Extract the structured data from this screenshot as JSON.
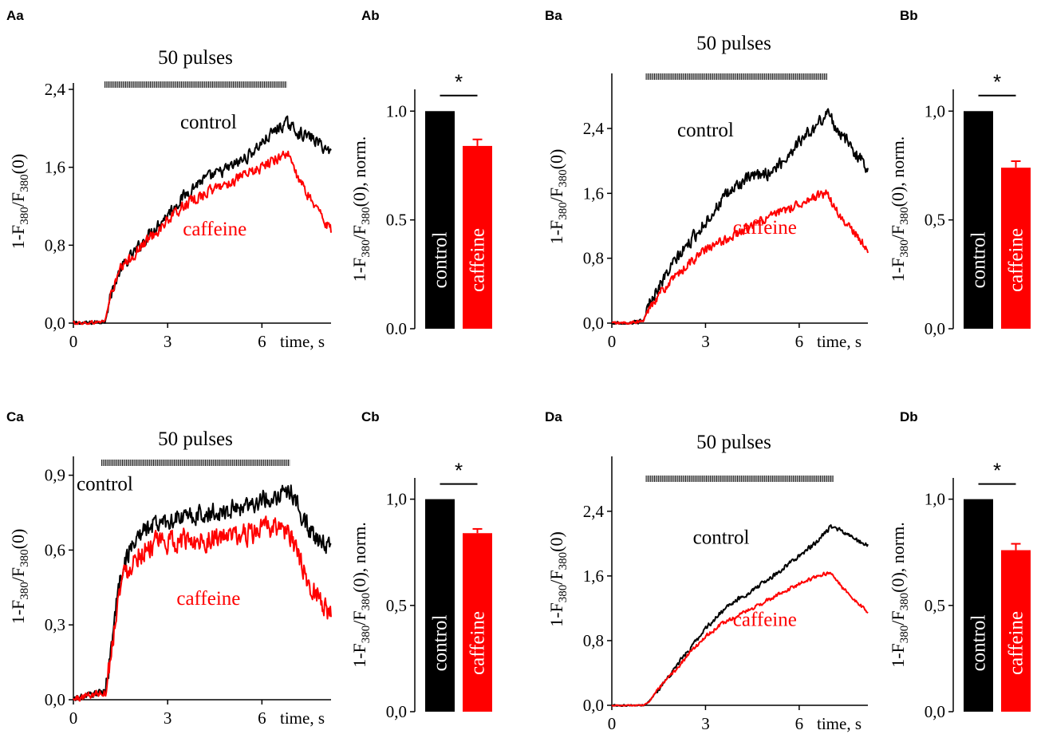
{
  "colors": {
    "control": "#000000",
    "caffeine": "#ff0000"
  },
  "labels": {
    "pulses": "50 pulses",
    "time_unit": "time, s",
    "control": "control",
    "caffeine": "caffeine",
    "significance": "*",
    "y_trace_parts": [
      "1-F",
      "380",
      "/F",
      "380",
      "(0)"
    ],
    "y_bar_parts": [
      "1-F",
      "380",
      "/F",
      "380",
      "(0), norm."
    ]
  },
  "chart_data": [
    {
      "id": "Aa",
      "label": "Aa",
      "type": "line",
      "title": "50 pulses",
      "xlabel": "time, s",
      "ylabel": "1-F380/F380(0)",
      "xlim": [
        0,
        8.2
      ],
      "ylim": [
        0,
        2.4
      ],
      "x_ticks": [
        0,
        3,
        6
      ],
      "x_tick_labels": [
        "0",
        "3",
        "6"
      ],
      "y_ticks": [
        0,
        0.8,
        1.6,
        2.4
      ],
      "y_tick_labels": [
        "0,0",
        "0,8",
        "1,6",
        "2,4"
      ],
      "stimulus": {
        "start": 1.0,
        "end": 6.8
      },
      "series": [
        {
          "name": "control",
          "color": "#000000",
          "noise": 0.055,
          "x": [
            0,
            0.5,
            1.0,
            1.2,
            1.5,
            2.0,
            2.5,
            3.0,
            3.5,
            4.0,
            4.5,
            5.0,
            5.5,
            6.0,
            6.5,
            6.8,
            7.2,
            7.6,
            8.0,
            8.2
          ],
          "y": [
            0,
            0,
            0.02,
            0.3,
            0.55,
            0.75,
            0.95,
            1.12,
            1.3,
            1.45,
            1.52,
            1.6,
            1.7,
            1.85,
            2.0,
            2.05,
            1.95,
            1.9,
            1.8,
            1.75
          ]
        },
        {
          "name": "caffeine",
          "color": "#ff0000",
          "noise": 0.05,
          "x": [
            0,
            0.5,
            1.0,
            1.2,
            1.5,
            2.0,
            2.5,
            3.0,
            3.5,
            4.0,
            4.5,
            5.0,
            5.5,
            6.0,
            6.5,
            6.8,
            7.2,
            7.6,
            8.0,
            8.2
          ],
          "y": [
            0,
            0,
            0.02,
            0.3,
            0.55,
            0.73,
            0.9,
            1.05,
            1.2,
            1.3,
            1.38,
            1.45,
            1.52,
            1.6,
            1.7,
            1.75,
            1.45,
            1.25,
            1.05,
            0.95
          ]
        }
      ],
      "annotations": [
        {
          "text": "control",
          "series": "control",
          "x": 4.3,
          "y": 2.0
        },
        {
          "text": "caffeine",
          "series": "caffeine",
          "x": 4.5,
          "y": 0.9
        }
      ]
    },
    {
      "id": "Ab",
      "label": "Ab",
      "type": "bar",
      "ylabel": "1-F380/F380(0), norm.",
      "ylim": [
        0,
        1.1
      ],
      "y_ticks": [
        0,
        0.5,
        1.0
      ],
      "y_tick_labels": [
        "0.0",
        "0.5",
        "1.0"
      ],
      "categories": [
        "control",
        "caffeine"
      ],
      "values": [
        1.0,
        0.84
      ],
      "errors": [
        0,
        0.03
      ],
      "colors": [
        "#000000",
        "#ff0000"
      ],
      "significance": "*"
    },
    {
      "id": "Ba",
      "label": "Ba",
      "type": "line",
      "title": "50 pulses",
      "xlabel": "time, s",
      "ylabel": "1-F380/F380(0)",
      "xlim": [
        0,
        8.2
      ],
      "ylim": [
        0,
        3.0
      ],
      "x_ticks": [
        0,
        3,
        6
      ],
      "x_tick_labels": [
        "0",
        "3",
        "6"
      ],
      "y_ticks": [
        0,
        0.8,
        1.6,
        2.4
      ],
      "y_tick_labels": [
        "0,0",
        "0,8",
        "1,6",
        "2,4"
      ],
      "stimulus": {
        "start": 1.1,
        "end": 6.9
      },
      "series": [
        {
          "name": "control",
          "color": "#000000",
          "noise": 0.07,
          "x": [
            0,
            0.5,
            1.0,
            1.2,
            1.5,
            2.0,
            2.5,
            3.0,
            3.5,
            4.0,
            4.5,
            5.0,
            5.5,
            6.0,
            6.5,
            6.9,
            7.3,
            7.7,
            8.0,
            8.2
          ],
          "y": [
            0,
            0,
            0.02,
            0.25,
            0.45,
            0.75,
            1.0,
            1.25,
            1.5,
            1.7,
            1.8,
            1.85,
            2.0,
            2.25,
            2.4,
            2.6,
            2.35,
            2.15,
            2.0,
            1.9
          ]
        },
        {
          "name": "caffeine",
          "color": "#ff0000",
          "noise": 0.05,
          "x": [
            0,
            0.5,
            1.0,
            1.2,
            1.5,
            2.0,
            2.5,
            3.0,
            3.5,
            4.0,
            4.5,
            5.0,
            5.5,
            6.0,
            6.5,
            6.9,
            7.3,
            7.7,
            8.0,
            8.2
          ],
          "y": [
            0,
            0,
            0.02,
            0.2,
            0.35,
            0.55,
            0.75,
            0.9,
            1.0,
            1.1,
            1.2,
            1.3,
            1.38,
            1.48,
            1.55,
            1.6,
            1.3,
            1.15,
            1.0,
            0.9
          ]
        }
      ],
      "annotations": [
        {
          "text": "control",
          "series": "control",
          "x": 3.0,
          "y": 2.3
        },
        {
          "text": "caffeine",
          "series": "caffeine",
          "x": 4.9,
          "y": 1.1
        }
      ]
    },
    {
      "id": "Bb",
      "label": "Bb",
      "type": "bar",
      "ylabel": "1-F380/F380(0), norm.",
      "ylim": [
        0,
        1.1
      ],
      "y_ticks": [
        0,
        0.5,
        1.0
      ],
      "y_tick_labels": [
        "0,0",
        "0,5",
        "1,0"
      ],
      "categories": [
        "control",
        "caffeine"
      ],
      "values": [
        1.0,
        0.74
      ],
      "errors": [
        0,
        0.03
      ],
      "colors": [
        "#000000",
        "#ff0000"
      ],
      "significance": "*"
    },
    {
      "id": "Ca",
      "label": "Ca",
      "type": "line",
      "title": "50 pulses",
      "xlabel": "time, s",
      "ylabel": "1-F380/F380(0)",
      "xlim": [
        0,
        8.2
      ],
      "ylim": [
        0,
        0.95
      ],
      "x_ticks": [
        0,
        3,
        6
      ],
      "x_tick_labels": [
        "0",
        "3",
        "6"
      ],
      "y_ticks": [
        0,
        0.3,
        0.6,
        0.9
      ],
      "y_tick_labels": [
        "0,0",
        "0,3",
        "0,6",
        "0,9"
      ],
      "stimulus": {
        "start": 0.9,
        "end": 6.9
      },
      "series": [
        {
          "name": "control",
          "color": "#000000",
          "noise": 0.035,
          "x": [
            0,
            0.5,
            1.0,
            1.2,
            1.4,
            1.6,
            2.0,
            2.5,
            3.0,
            3.5,
            4.0,
            4.5,
            5.0,
            5.5,
            6.0,
            6.5,
            6.9,
            7.2,
            7.6,
            8.0,
            8.2
          ],
          "y": [
            0,
            0.02,
            0.03,
            0.2,
            0.42,
            0.55,
            0.65,
            0.7,
            0.72,
            0.73,
            0.74,
            0.75,
            0.76,
            0.78,
            0.8,
            0.82,
            0.84,
            0.76,
            0.66,
            0.62,
            0.6
          ]
        },
        {
          "name": "caffeine",
          "color": "#ff0000",
          "noise": 0.04,
          "x": [
            0,
            0.5,
            1.0,
            1.2,
            1.4,
            1.6,
            2.0,
            2.5,
            3.0,
            3.5,
            4.0,
            4.5,
            5.0,
            5.5,
            6.0,
            6.5,
            6.9,
            7.2,
            7.6,
            8.0,
            8.2
          ],
          "y": [
            0,
            0.02,
            0.03,
            0.18,
            0.4,
            0.5,
            0.58,
            0.62,
            0.63,
            0.64,
            0.64,
            0.65,
            0.65,
            0.66,
            0.68,
            0.7,
            0.66,
            0.55,
            0.45,
            0.38,
            0.34
          ]
        }
      ],
      "annotations": [
        {
          "text": "control",
          "series": "control",
          "x": 1.0,
          "y": 0.84
        },
        {
          "text": "caffeine",
          "series": "caffeine",
          "x": 4.3,
          "y": 0.38
        }
      ]
    },
    {
      "id": "Cb",
      "label": "Cb",
      "type": "bar",
      "ylabel": "1-F380/F380(0), norm.",
      "ylim": [
        0,
        1.1
      ],
      "y_ticks": [
        0,
        0.5,
        1.0
      ],
      "y_tick_labels": [
        "0,0",
        "0,5",
        "1,0"
      ],
      "categories": [
        "control",
        "caffeine"
      ],
      "values": [
        1.0,
        0.84
      ],
      "errors": [
        0,
        0.02
      ],
      "colors": [
        "#000000",
        "#ff0000"
      ],
      "significance": "*"
    },
    {
      "id": "Da",
      "label": "Da",
      "type": "line",
      "title": "50 pulses",
      "xlabel": "time, s",
      "ylabel": "1-F380/F380(0)",
      "xlim": [
        0,
        8.2
      ],
      "ylim": [
        0,
        3.0
      ],
      "x_ticks": [
        0,
        3,
        6
      ],
      "x_tick_labels": [
        "0",
        "3",
        "6"
      ],
      "y_ticks": [
        0,
        0.8,
        1.6,
        2.4
      ],
      "y_tick_labels": [
        "0,0",
        "0,8",
        "1,6",
        "2,4"
      ],
      "stimulus": {
        "start": 1.1,
        "end": 7.1
      },
      "series": [
        {
          "name": "control",
          "color": "#000000",
          "noise": 0.025,
          "x": [
            0,
            0.5,
            1.0,
            1.2,
            1.5,
            2.0,
            2.5,
            3.0,
            3.5,
            4.0,
            4.5,
            5.0,
            5.5,
            6.0,
            6.5,
            7.0,
            7.4,
            7.8,
            8.2
          ],
          "y": [
            0,
            0,
            0.0,
            0.05,
            0.2,
            0.45,
            0.7,
            0.95,
            1.15,
            1.3,
            1.42,
            1.55,
            1.7,
            1.85,
            2.0,
            2.2,
            2.15,
            2.05,
            1.98
          ]
        },
        {
          "name": "caffeine",
          "color": "#ff0000",
          "noise": 0.02,
          "x": [
            0,
            0.5,
            1.0,
            1.2,
            1.5,
            2.0,
            2.5,
            3.0,
            3.5,
            4.0,
            4.5,
            5.0,
            5.5,
            6.0,
            6.5,
            7.0,
            7.4,
            7.8,
            8.2
          ],
          "y": [
            0,
            0,
            0.0,
            0.05,
            0.2,
            0.42,
            0.65,
            0.85,
            1.0,
            1.1,
            1.2,
            1.3,
            1.4,
            1.5,
            1.58,
            1.65,
            1.45,
            1.3,
            1.15
          ]
        }
      ],
      "annotations": [
        {
          "text": "control",
          "series": "control",
          "x": 3.5,
          "y": 2.0
        },
        {
          "text": "caffeine",
          "series": "caffeine",
          "x": 4.9,
          "y": 0.98
        }
      ]
    },
    {
      "id": "Db",
      "label": "Db",
      "type": "bar",
      "ylabel": "1-F380/F380(0), norm.",
      "ylim": [
        0,
        1.1
      ],
      "y_ticks": [
        0,
        0.5,
        1.0
      ],
      "y_tick_labels": [
        "0,0",
        "0,5",
        "1,0"
      ],
      "categories": [
        "control",
        "caffeine"
      ],
      "values": [
        1.0,
        0.76
      ],
      "errors": [
        0,
        0.03
      ],
      "colors": [
        "#000000",
        "#ff0000"
      ],
      "significance": "*"
    }
  ]
}
